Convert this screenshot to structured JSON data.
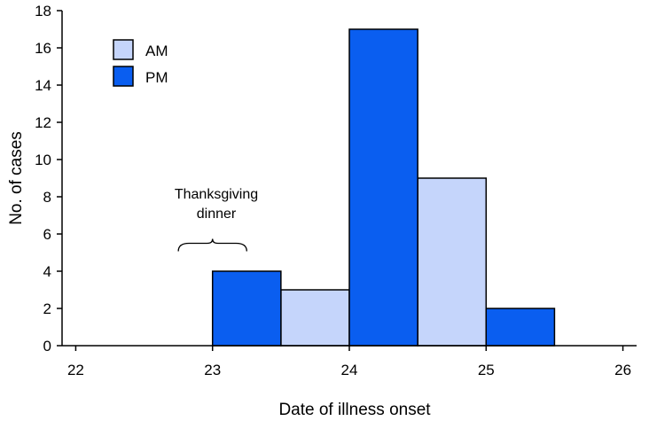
{
  "chart_data": {
    "type": "bar",
    "title": "",
    "xlabel": "Date of illness onset",
    "ylabel": "No. of cases",
    "xlim": [
      21.9,
      26.1
    ],
    "ylim": [
      0,
      18
    ],
    "x_ticks": [
      22,
      23,
      24,
      25,
      26
    ],
    "y_ticks": [
      0,
      2,
      4,
      6,
      8,
      10,
      12,
      14,
      16,
      18
    ],
    "bin_width": 0.5,
    "legend_position": "top-left",
    "colors": {
      "AM": "#c5d5fb",
      "PM": "#0a5ef0"
    },
    "series": [
      {
        "name": "AM",
        "bars": [
          {
            "x_start": 23.5,
            "x_end": 24.0,
            "value": 3
          },
          {
            "x_start": 24.5,
            "x_end": 25.0,
            "value": 9
          }
        ]
      },
      {
        "name": "PM",
        "bars": [
          {
            "x_start": 23.0,
            "x_end": 23.5,
            "value": 4
          },
          {
            "x_start": 24.0,
            "x_end": 24.5,
            "value": 17
          },
          {
            "x_start": 25.0,
            "x_end": 25.5,
            "value": 2
          }
        ]
      }
    ],
    "annotation": {
      "text_line1": "Thanksgiving",
      "text_line2": "dinner",
      "x_start": 22.75,
      "x_end": 23.25,
      "y": 5.5
    }
  }
}
